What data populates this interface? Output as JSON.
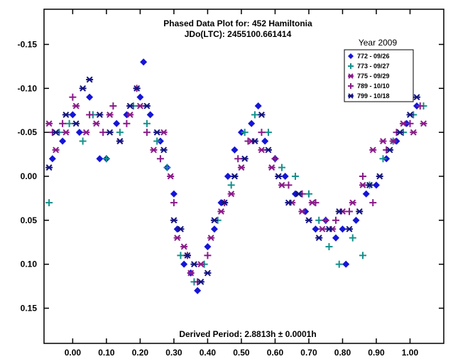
{
  "chart_data": {
    "type": "scatter",
    "title": "Phased Data Plot for: 452 Hamiltonia",
    "subtitle": "JDo(LTC): 2455100.661414",
    "footer": "Derived Period: 2.8813h  ± 0.0001h",
    "xlabel": "",
    "ylabel": "",
    "xlim": [
      -0.085,
      1.1
    ],
    "ylim": [
      -0.19,
      0.19
    ],
    "y_inverted": true,
    "grid": false,
    "legend_title": "Year 2009",
    "legend_position": "top-right",
    "x_ticks": [
      "0.00",
      "0.10",
      "0.20",
      "0.30",
      "0.40",
      "0.50",
      "0.60",
      "0.70",
      "0.80",
      "0.90",
      "1.00"
    ],
    "y_ticks": [
      "-0.15",
      "-0.10",
      "-0.05",
      "0.00",
      "0.05",
      "0.10",
      "0.15"
    ],
    "series": [
      {
        "name": "772 - 09/26",
        "color": "#1515d8",
        "marker": "diamond",
        "points": [
          [
            -0.06,
            -0.02
          ],
          [
            -0.03,
            -0.04
          ],
          [
            0.0,
            -0.07
          ],
          [
            0.02,
            -0.05
          ],
          [
            0.05,
            -0.09
          ],
          [
            0.08,
            -0.02
          ],
          [
            0.1,
            -0.02
          ],
          [
            0.13,
            -0.06
          ],
          [
            0.16,
            -0.07
          ],
          [
            0.2,
            -0.09
          ],
          [
            0.21,
            -0.13
          ],
          [
            0.23,
            -0.07
          ],
          [
            0.26,
            -0.04
          ],
          [
            0.28,
            -0.01
          ],
          [
            0.3,
            0.02
          ],
          [
            0.31,
            0.06
          ],
          [
            0.33,
            0.1
          ],
          [
            0.35,
            0.11
          ],
          [
            0.37,
            0.13
          ],
          [
            0.4,
            0.08
          ],
          [
            0.42,
            0.06
          ],
          [
            0.44,
            0.03
          ],
          [
            0.46,
            0.0
          ],
          [
            0.48,
            -0.03
          ],
          [
            0.5,
            -0.05
          ],
          [
            0.53,
            -0.06
          ],
          [
            0.55,
            -0.08
          ],
          [
            0.57,
            -0.04
          ],
          [
            0.6,
            -0.02
          ],
          [
            0.63,
            0.0
          ],
          [
            0.66,
            0.02
          ],
          [
            0.69,
            0.04
          ],
          [
            0.72,
            0.06
          ],
          [
            0.75,
            0.05
          ],
          [
            0.78,
            0.07
          ],
          [
            0.8,
            0.06
          ],
          [
            0.81,
            0.1
          ],
          [
            0.84,
            0.05
          ],
          [
            0.87,
            0.02
          ],
          [
            0.9,
            0.01
          ],
          [
            0.93,
            -0.02
          ],
          [
            0.96,
            -0.04
          ],
          [
            0.99,
            -0.06
          ],
          [
            1.02,
            -0.08
          ]
        ]
      },
      {
        "name": "773 - 09/27",
        "color": "#14908c",
        "marker": "plus",
        "points": [
          [
            -0.07,
            0.03
          ],
          [
            -0.04,
            -0.05
          ],
          [
            -0.01,
            -0.06
          ],
          [
            0.03,
            -0.04
          ],
          [
            0.06,
            -0.07
          ],
          [
            0.1,
            -0.02
          ],
          [
            0.14,
            -0.05
          ],
          [
            0.18,
            -0.08
          ],
          [
            0.22,
            -0.06
          ],
          [
            0.25,
            -0.04
          ],
          [
            0.28,
            -0.01
          ],
          [
            0.32,
            0.09
          ],
          [
            0.36,
            0.12
          ],
          [
            0.39,
            0.1
          ],
          [
            0.43,
            0.05
          ],
          [
            0.47,
            0.01
          ],
          [
            0.51,
            -0.05
          ],
          [
            0.54,
            -0.07
          ],
          [
            0.58,
            -0.05
          ],
          [
            0.62,
            -0.01
          ],
          [
            0.66,
            0.0
          ],
          [
            0.7,
            0.02
          ],
          [
            0.73,
            0.05
          ],
          [
            0.76,
            0.08
          ],
          [
            0.79,
            0.1
          ],
          [
            0.83,
            0.07
          ],
          [
            0.86,
            0.09
          ],
          [
            0.88,
            0.01
          ],
          [
            0.92,
            -0.02
          ],
          [
            0.95,
            -0.04
          ],
          [
            0.98,
            -0.05
          ],
          [
            1.01,
            -0.07
          ],
          [
            1.04,
            -0.08
          ]
        ]
      },
      {
        "name": "775 - 09/29",
        "color": "#8a1a8a",
        "marker": "asterisk",
        "points": [
          [
            -0.07,
            -0.06
          ],
          [
            -0.05,
            -0.03
          ],
          [
            -0.02,
            -0.05
          ],
          [
            0.01,
            -0.08
          ],
          [
            0.04,
            -0.05
          ],
          [
            0.07,
            -0.06
          ],
          [
            0.11,
            -0.07
          ],
          [
            0.14,
            -0.04
          ],
          [
            0.17,
            -0.07
          ],
          [
            0.2,
            -0.08
          ],
          [
            0.24,
            -0.03
          ],
          [
            0.27,
            -0.05
          ],
          [
            0.29,
            0.0
          ],
          [
            0.31,
            0.07
          ],
          [
            0.33,
            0.08
          ],
          [
            0.35,
            0.11
          ],
          [
            0.38,
            0.1
          ],
          [
            0.41,
            0.07
          ],
          [
            0.44,
            0.04
          ],
          [
            0.47,
            0.02
          ],
          [
            0.5,
            -0.01
          ],
          [
            0.53,
            -0.04
          ],
          [
            0.56,
            -0.03
          ],
          [
            0.59,
            -0.01
          ],
          [
            0.62,
            0.01
          ],
          [
            0.65,
            0.03
          ],
          [
            0.68,
            0.04
          ],
          [
            0.71,
            0.03
          ],
          [
            0.74,
            0.06
          ],
          [
            0.77,
            0.06
          ],
          [
            0.8,
            0.04
          ],
          [
            0.83,
            0.03
          ],
          [
            0.86,
            0.01
          ],
          [
            0.89,
            -0.03
          ],
          [
            0.92,
            -0.04
          ],
          [
            0.95,
            -0.04
          ],
          [
            0.98,
            -0.06
          ],
          [
            1.01,
            -0.05
          ],
          [
            1.04,
            -0.06
          ]
        ]
      },
      {
        "name": "789 - 10/10",
        "color": "#8a1a8a",
        "marker": "plus",
        "points": [
          [
            -0.06,
            -0.05
          ],
          [
            -0.03,
            -0.06
          ],
          [
            0.0,
            -0.09
          ],
          [
            0.05,
            -0.07
          ],
          [
            0.09,
            -0.05
          ],
          [
            0.12,
            -0.08
          ],
          [
            0.16,
            -0.06
          ],
          [
            0.19,
            -0.1
          ],
          [
            0.22,
            -0.05
          ],
          [
            0.26,
            -0.02
          ],
          [
            0.3,
            0.03
          ],
          [
            0.34,
            0.09
          ],
          [
            0.37,
            0.12
          ],
          [
            0.4,
            0.09
          ],
          [
            0.45,
            0.03
          ],
          [
            0.49,
            -0.02
          ],
          [
            0.52,
            -0.04
          ],
          [
            0.56,
            -0.05
          ],
          [
            0.6,
            -0.02
          ],
          [
            0.64,
            0.01
          ],
          [
            0.68,
            0.02
          ],
          [
            0.72,
            0.03
          ],
          [
            0.75,
            0.05
          ],
          [
            0.78,
            0.05
          ],
          [
            0.82,
            0.04
          ],
          [
            0.86,
            0.0
          ],
          [
            0.89,
            0.03
          ],
          [
            0.93,
            -0.03
          ],
          [
            0.96,
            -0.05
          ],
          [
            1.0,
            -0.06
          ],
          [
            1.03,
            -0.08
          ]
        ]
      },
      {
        "name": "799 - 10/18",
        "color": "#131380",
        "marker": "asterisk",
        "points": [
          [
            -0.07,
            -0.01
          ],
          [
            -0.05,
            -0.05
          ],
          [
            -0.02,
            -0.07
          ],
          [
            0.01,
            -0.06
          ],
          [
            0.03,
            -0.1
          ],
          [
            0.05,
            -0.11
          ],
          [
            0.08,
            -0.07
          ],
          [
            0.11,
            -0.05
          ],
          [
            0.14,
            -0.04
          ],
          [
            0.17,
            -0.08
          ],
          [
            0.19,
            -0.1
          ],
          [
            0.22,
            -0.08
          ],
          [
            0.25,
            -0.05
          ],
          [
            0.27,
            -0.03
          ],
          [
            0.3,
            0.05
          ],
          [
            0.32,
            0.06
          ],
          [
            0.34,
            0.09
          ],
          [
            0.36,
            0.1
          ],
          [
            0.38,
            0.12
          ],
          [
            0.4,
            0.11
          ],
          [
            0.42,
            0.05
          ],
          [
            0.45,
            0.03
          ],
          [
            0.48,
            0.0
          ],
          [
            0.51,
            -0.02
          ],
          [
            0.54,
            -0.04
          ],
          [
            0.56,
            -0.07
          ],
          [
            0.58,
            -0.03
          ],
          [
            0.61,
            0.0
          ],
          [
            0.64,
            0.03
          ],
          [
            0.67,
            0.02
          ],
          [
            0.7,
            0.05
          ],
          [
            0.73,
            0.07
          ],
          [
            0.76,
            0.06
          ],
          [
            0.79,
            0.04
          ],
          [
            0.82,
            0.06
          ],
          [
            0.85,
            0.04
          ],
          [
            0.88,
            0.01
          ],
          [
            0.91,
            0.0
          ],
          [
            0.94,
            -0.03
          ],
          [
            0.97,
            -0.05
          ],
          [
            1.0,
            -0.07
          ],
          [
            1.02,
            -0.09
          ]
        ]
      }
    ]
  }
}
